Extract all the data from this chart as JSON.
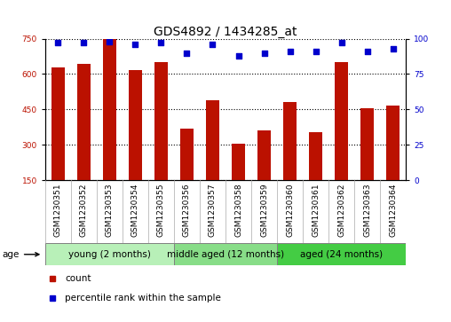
{
  "title": "GDS4892 / 1434285_at",
  "samples": [
    "GSM1230351",
    "GSM1230352",
    "GSM1230353",
    "GSM1230354",
    "GSM1230355",
    "GSM1230356",
    "GSM1230357",
    "GSM1230358",
    "GSM1230359",
    "GSM1230360",
    "GSM1230361",
    "GSM1230362",
    "GSM1230363",
    "GSM1230364"
  ],
  "counts": [
    630,
    645,
    760,
    615,
    650,
    370,
    490,
    305,
    360,
    480,
    355,
    650,
    455,
    465
  ],
  "percentiles": [
    97,
    97,
    98,
    96,
    97,
    90,
    96,
    88,
    90,
    91,
    91,
    97,
    91,
    93
  ],
  "groups": [
    {
      "label": "young (2 months)",
      "start": 0,
      "end": 5,
      "color": "#b8f0b8"
    },
    {
      "label": "middle aged (12 months)",
      "start": 5,
      "end": 9,
      "color": "#88dd88"
    },
    {
      "label": "aged (24 months)",
      "start": 9,
      "end": 14,
      "color": "#44cc44"
    }
  ],
  "ylim": [
    150,
    750
  ],
  "yticks": [
    150,
    300,
    450,
    600,
    750
  ],
  "right_yticks": [
    0,
    25,
    50,
    75,
    100
  ],
  "bar_color": "#bb1100",
  "dot_color": "#0000cc",
  "background_color": "#ffffff",
  "grid_color": "#000000",
  "age_label": "age",
  "legend_count": "count",
  "legend_percentile": "percentile rank within the sample",
  "bar_width": 0.5,
  "title_fontsize": 10,
  "tick_fontsize": 6.5,
  "label_fontsize": 7.5,
  "group_label_fontsize": 7.5,
  "xticklabel_area_color": "#cccccc"
}
